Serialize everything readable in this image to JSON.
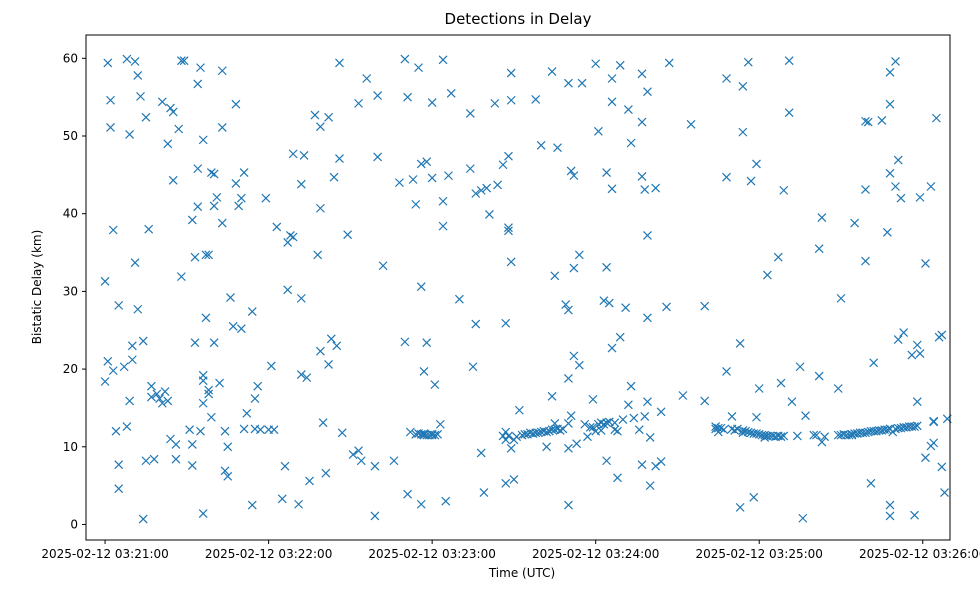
{
  "chart_data": {
    "type": "scatter",
    "title": "Detections in Delay",
    "xlabel": "Time (UTC)",
    "ylabel": "Bistatic Delay (km)",
    "marker": "x",
    "color": "#1f77b4",
    "grid": false,
    "xlim": [
      "2025-02-12 03:20:53",
      "2025-02-12 03:26:10"
    ],
    "ylim": [
      -2,
      63
    ],
    "xticks": [
      "2025-02-12 03:21:00",
      "2025-02-12 03:22:00",
      "2025-02-12 03:23:00",
      "2025-02-12 03:24:00",
      "2025-02-12 03:25:00",
      "2025-02-12 03:26:00"
    ],
    "yticks": [
      "0",
      "10",
      "20",
      "30",
      "40",
      "50",
      "60"
    ],
    "x_seconds_note": "x values are seconds after 03:21:00",
    "points": [
      [
        0,
        31.3
      ],
      [
        0,
        18.4
      ],
      [
        1,
        21
      ],
      [
        1,
        59.4
      ],
      [
        2,
        51.1
      ],
      [
        2,
        54.6
      ],
      [
        3,
        37.9
      ],
      [
        3,
        19.8
      ],
      [
        4,
        12
      ],
      [
        5,
        28.2
      ],
      [
        5,
        7.7
      ],
      [
        5,
        4.6
      ],
      [
        7,
        20.3
      ],
      [
        8,
        12.6
      ],
      [
        8,
        59.9
      ],
      [
        9,
        50.2
      ],
      [
        9,
        15.9
      ],
      [
        10,
        21.2
      ],
      [
        10,
        23
      ],
      [
        11,
        33.7
      ],
      [
        11,
        59.6
      ],
      [
        12,
        27.7
      ],
      [
        12,
        57.8
      ],
      [
        13,
        55.1
      ],
      [
        14,
        23.6
      ],
      [
        14,
        0.7
      ],
      [
        15,
        52.4
      ],
      [
        15,
        8.2
      ],
      [
        16,
        38
      ],
      [
        17,
        16.4
      ],
      [
        17,
        17.8
      ],
      [
        18,
        8.4
      ],
      [
        19,
        16.8
      ],
      [
        20,
        16.2
      ],
      [
        21,
        54.4
      ],
      [
        21,
        15.6
      ],
      [
        22,
        17.1
      ],
      [
        23,
        49
      ],
      [
        23,
        15.9
      ],
      [
        24,
        53.6
      ],
      [
        24,
        11
      ],
      [
        25,
        53.1
      ],
      [
        25,
        44.3
      ],
      [
        26,
        8.4
      ],
      [
        26,
        10.3
      ],
      [
        27,
        50.9
      ],
      [
        28,
        31.9
      ],
      [
        28,
        59.7
      ],
      [
        29,
        59.7
      ],
      [
        31,
        12.2
      ],
      [
        32,
        10.3
      ],
      [
        32,
        7.6
      ],
      [
        32,
        39.2
      ],
      [
        33,
        34.4
      ],
      [
        33,
        23.4
      ],
      [
        34,
        40.9
      ],
      [
        34,
        45.8
      ],
      [
        34,
        56.7
      ],
      [
        35,
        58.8
      ],
      [
        35,
        12
      ],
      [
        36,
        18.5
      ],
      [
        36,
        19.2
      ],
      [
        36,
        15.6
      ],
      [
        36,
        1.4
      ],
      [
        36,
        49.5
      ],
      [
        37,
        26.6
      ],
      [
        37,
        34.7
      ],
      [
        38,
        34.7
      ],
      [
        38,
        17.3
      ],
      [
        38,
        16.8
      ],
      [
        39,
        45.3
      ],
      [
        39,
        13.8
      ],
      [
        40,
        41
      ],
      [
        40,
        23.4
      ],
      [
        40,
        45.1
      ],
      [
        41,
        42.1
      ],
      [
        42,
        18.2
      ],
      [
        43,
        58.4
      ],
      [
        43,
        51.1
      ],
      [
        43,
        38.8
      ],
      [
        44,
        12
      ],
      [
        44,
        6.9
      ],
      [
        45,
        6.2
      ],
      [
        45,
        10
      ],
      [
        46,
        29.2
      ],
      [
        47,
        25.5
      ],
      [
        48,
        54.1
      ],
      [
        48,
        43.9
      ],
      [
        49,
        41
      ],
      [
        50,
        42
      ],
      [
        50,
        25.2
      ],
      [
        51,
        45.3
      ],
      [
        51,
        12.3
      ],
      [
        52,
        14.3
      ],
      [
        54,
        2.5
      ],
      [
        54,
        27.4
      ],
      [
        55,
        12.3
      ],
      [
        55,
        16.2
      ],
      [
        56,
        17.8
      ],
      [
        57,
        12.2
      ],
      [
        59,
        42
      ],
      [
        60,
        12.2
      ],
      [
        61,
        20.4
      ],
      [
        62,
        12.2
      ],
      [
        63,
        38.3
      ],
      [
        65,
        3.3
      ],
      [
        66,
        7.5
      ],
      [
        67,
        30.2
      ],
      [
        67,
        36.3
      ],
      [
        68,
        37.2
      ],
      [
        69,
        37
      ],
      [
        69,
        47.7
      ],
      [
        71,
        2.6
      ],
      [
        72,
        29.1
      ],
      [
        72,
        43.8
      ],
      [
        72,
        19.3
      ],
      [
        73,
        47.5
      ],
      [
        74,
        18.9
      ],
      [
        75,
        5.6
      ],
      [
        77,
        52.7
      ],
      [
        78,
        34.7
      ],
      [
        79,
        22.3
      ],
      [
        79,
        40.7
      ],
      [
        79,
        51.2
      ],
      [
        80,
        13.1
      ],
      [
        81,
        6.6
      ],
      [
        82,
        52.4
      ],
      [
        82,
        20.6
      ],
      [
        83,
        23.9
      ],
      [
        84,
        44.7
      ],
      [
        85,
        23
      ],
      [
        86,
        47.1
      ],
      [
        86,
        59.4
      ],
      [
        87,
        11.8
      ],
      [
        89,
        37.3
      ],
      [
        91,
        9
      ],
      [
        93,
        54.2
      ],
      [
        93,
        9.5
      ],
      [
        94,
        8.2
      ],
      [
        96,
        57.4
      ],
      [
        99,
        1.1
      ],
      [
        99,
        7.5
      ],
      [
        100,
        47.3
      ],
      [
        100,
        55.2
      ],
      [
        102,
        33.3
      ],
      [
        106,
        8.2
      ],
      [
        108,
        44
      ],
      [
        110,
        23.5
      ],
      [
        110,
        59.9
      ],
      [
        111,
        55
      ],
      [
        111,
        3.9
      ],
      [
        112,
        11.9
      ],
      [
        113,
        44.4
      ],
      [
        114,
        11.6
      ],
      [
        114,
        41.2
      ],
      [
        115,
        11.7
      ],
      [
        115,
        58.8
      ],
      [
        116,
        46.4
      ],
      [
        116,
        11.6
      ],
      [
        116,
        30.6
      ],
      [
        116,
        2.6
      ],
      [
        117,
        11.7
      ],
      [
        117,
        19.7
      ],
      [
        117,
        11.5
      ],
      [
        118,
        46.7
      ],
      [
        118,
        23.4
      ],
      [
        118,
        11.5
      ],
      [
        119,
        11.5
      ],
      [
        120,
        11.5
      ],
      [
        120,
        54.3
      ],
      [
        120,
        44.6
      ],
      [
        120,
        11.6
      ],
      [
        121,
        18
      ],
      [
        121,
        11.5
      ],
      [
        122,
        11.6
      ],
      [
        123,
        12.9
      ],
      [
        124,
        41.6
      ],
      [
        124,
        38.4
      ],
      [
        124,
        59.8
      ],
      [
        125,
        3
      ],
      [
        126,
        44.9
      ],
      [
        127,
        55.5
      ],
      [
        130,
        29
      ],
      [
        134,
        52.9
      ],
      [
        134,
        45.8
      ],
      [
        135,
        20.3
      ],
      [
        136,
        42.6
      ],
      [
        136,
        25.8
      ],
      [
        138,
        43
      ],
      [
        138,
        9.2
      ],
      [
        139,
        4.1
      ],
      [
        140,
        43.3
      ],
      [
        141,
        39.9
      ],
      [
        143,
        54.2
      ],
      [
        144,
        43.7
      ],
      [
        146,
        46.3
      ],
      [
        146,
        11.4
      ],
      [
        147,
        10.9
      ],
      [
        147,
        25.9
      ],
      [
        147,
        11.9
      ],
      [
        147,
        5.3
      ],
      [
        148,
        38.2
      ],
      [
        148,
        47.4
      ],
      [
        148,
        11.4
      ],
      [
        148,
        37.8
      ],
      [
        149,
        58.1
      ],
      [
        149,
        54.6
      ],
      [
        149,
        33.8
      ],
      [
        149,
        9.8
      ],
      [
        150,
        5.8
      ],
      [
        150,
        10.9
      ],
      [
        151,
        11.3
      ],
      [
        152,
        14.7
      ],
      [
        153,
        11.5
      ],
      [
        154,
        11.6
      ],
      [
        155,
        11.6
      ],
      [
        156,
        11.8
      ],
      [
        157,
        11.7
      ],
      [
        158,
        11.8
      ],
      [
        158,
        54.7
      ],
      [
        159,
        11.8
      ],
      [
        160,
        48.8
      ],
      [
        160,
        11.9
      ],
      [
        161,
        12
      ],
      [
        162,
        11.9
      ],
      [
        162,
        10
      ],
      [
        163,
        12
      ],
      [
        164,
        12.2
      ],
      [
        164,
        16.5
      ],
      [
        164,
        58.3
      ],
      [
        165,
        12.2
      ],
      [
        165,
        13
      ],
      [
        165,
        32
      ],
      [
        166,
        12.3
      ],
      [
        166,
        48.5
      ],
      [
        167,
        12.1
      ],
      [
        168,
        12.3
      ],
      [
        169,
        28.3
      ],
      [
        170,
        56.8
      ],
      [
        170,
        13
      ],
      [
        170,
        18.8
      ],
      [
        170,
        27.6
      ],
      [
        170,
        9.8
      ],
      [
        170,
        2.5
      ],
      [
        171,
        45.5
      ],
      [
        171,
        14
      ],
      [
        172,
        44.9
      ],
      [
        172,
        33
      ],
      [
        172,
        21.7
      ],
      [
        173,
        10.4
      ],
      [
        174,
        34.7
      ],
      [
        174,
        20.5
      ],
      [
        175,
        56.8
      ],
      [
        176,
        12.9
      ],
      [
        177,
        11.3
      ],
      [
        178,
        12.5
      ],
      [
        179,
        16.1
      ],
      [
        179,
        12.5
      ],
      [
        180,
        59.3
      ],
      [
        180,
        12
      ],
      [
        181,
        50.6
      ],
      [
        181,
        12.9
      ],
      [
        182,
        13.1
      ],
      [
        182,
        12.1
      ],
      [
        183,
        12.9
      ],
      [
        183,
        28.8
      ],
      [
        184,
        13.1
      ],
      [
        184,
        45.3
      ],
      [
        184,
        33.1
      ],
      [
        184,
        8.2
      ],
      [
        185,
        13.2
      ],
      [
        185,
        28.5
      ],
      [
        186,
        57.4
      ],
      [
        186,
        54.4
      ],
      [
        186,
        43.2
      ],
      [
        186,
        22.7
      ],
      [
        187,
        13.1
      ],
      [
        187,
        12.2
      ],
      [
        188,
        6
      ],
      [
        188,
        12
      ],
      [
        189,
        24.1
      ],
      [
        189,
        59.1
      ],
      [
        190,
        13.5
      ],
      [
        191,
        27.9
      ],
      [
        192,
        15.4
      ],
      [
        192,
        53.4
      ],
      [
        193,
        49.1
      ],
      [
        193,
        17.8
      ],
      [
        194,
        13.7
      ],
      [
        196,
        12.2
      ],
      [
        197,
        58
      ],
      [
        197,
        51.8
      ],
      [
        197,
        44.8
      ],
      [
        197,
        7.7
      ],
      [
        198,
        13.9
      ],
      [
        198,
        43.1
      ],
      [
        199,
        26.6
      ],
      [
        199,
        37.2
      ],
      [
        199,
        15.8
      ],
      [
        199,
        55.7
      ],
      [
        200,
        11.2
      ],
      [
        200,
        5
      ],
      [
        202,
        43.3
      ],
      [
        202,
        7.5
      ],
      [
        204,
        14.5
      ],
      [
        204,
        8.1
      ],
      [
        206,
        28
      ],
      [
        207,
        59.4
      ],
      [
        212,
        16.6
      ],
      [
        215,
        51.5
      ],
      [
        220,
        28.1
      ],
      [
        220,
        15.9
      ],
      [
        224,
        12.6
      ],
      [
        224,
        12.3
      ],
      [
        225,
        12.4
      ],
      [
        225,
        11.9
      ],
      [
        226,
        12.4
      ],
      [
        227,
        12.2
      ],
      [
        228,
        19.7
      ],
      [
        228,
        44.7
      ],
      [
        228,
        57.4
      ],
      [
        230,
        13.9
      ],
      [
        230,
        12.3
      ],
      [
        231,
        12.1
      ],
      [
        232,
        12.3
      ],
      [
        233,
        23.3
      ],
      [
        233,
        2.2
      ],
      [
        234,
        12.1
      ],
      [
        234,
        50.5
      ],
      [
        234,
        56.4
      ],
      [
        234,
        11.8
      ],
      [
        235,
        12
      ],
      [
        236,
        59.5
      ],
      [
        236,
        11.9
      ],
      [
        237,
        44.2
      ],
      [
        237,
        11.8
      ],
      [
        238,
        3.5
      ],
      [
        238,
        11.7
      ],
      [
        239,
        13.8
      ],
      [
        239,
        46.4
      ],
      [
        239,
        11.7
      ],
      [
        240,
        17.5
      ],
      [
        240,
        11.6
      ],
      [
        241,
        11.5
      ],
      [
        242,
        11.2
      ],
      [
        242,
        11.5
      ],
      [
        243,
        32.1
      ],
      [
        243,
        11.4
      ],
      [
        244,
        11.4
      ],
      [
        245,
        11.4
      ],
      [
        246,
        11.3
      ],
      [
        247,
        11.4
      ],
      [
        247,
        34.4
      ],
      [
        248,
        11.3
      ],
      [
        248,
        18.2
      ],
      [
        249,
        11.4
      ],
      [
        249,
        43
      ],
      [
        251,
        59.7
      ],
      [
        251,
        53
      ],
      [
        252,
        15.8
      ],
      [
        254,
        11.4
      ],
      [
        255,
        20.3
      ],
      [
        256,
        0.8
      ],
      [
        257,
        14
      ],
      [
        260,
        11.5
      ],
      [
        261,
        11.5
      ],
      [
        262,
        35.5
      ],
      [
        262,
        19.1
      ],
      [
        263,
        39.5
      ],
      [
        263,
        10.6
      ],
      [
        264,
        11.3
      ],
      [
        269,
        11.5
      ],
      [
        269,
        17.5
      ],
      [
        270,
        29.1
      ],
      [
        270,
        11.5
      ],
      [
        271,
        11.6
      ],
      [
        272,
        11.5
      ],
      [
        273,
        11.5
      ],
      [
        274,
        11.6
      ],
      [
        274,
        11.5
      ],
      [
        275,
        11.7
      ],
      [
        275,
        38.8
      ],
      [
        276,
        11.7
      ],
      [
        277,
        11.8
      ],
      [
        278,
        11.8
      ],
      [
        279,
        51.9
      ],
      [
        279,
        11.8
      ],
      [
        279,
        43.1
      ],
      [
        279,
        33.9
      ],
      [
        280,
        51.8
      ],
      [
        280,
        11.9
      ],
      [
        281,
        12
      ],
      [
        281,
        5.3
      ],
      [
        282,
        20.8
      ],
      [
        282,
        12
      ],
      [
        283,
        12
      ],
      [
        284,
        12.1
      ],
      [
        285,
        52
      ],
      [
        285,
        12.1
      ],
      [
        286,
        12.2
      ],
      [
        287,
        37.6
      ],
      [
        287,
        12.2
      ],
      [
        288,
        58.2
      ],
      [
        288,
        54.1
      ],
      [
        288,
        45.2
      ],
      [
        288,
        12.3
      ],
      [
        288,
        12.3
      ],
      [
        288,
        2.5
      ],
      [
        288,
        1.1
      ],
      [
        289,
        11.9
      ],
      [
        290,
        12.3
      ],
      [
        290,
        59.6
      ],
      [
        290,
        43.5
      ],
      [
        291,
        12.4
      ],
      [
        291,
        46.9
      ],
      [
        291,
        23.8
      ],
      [
        292,
        12.4
      ],
      [
        292,
        42
      ],
      [
        293,
        24.7
      ],
      [
        293,
        12.5
      ],
      [
        294,
        12.5
      ],
      [
        295,
        12.6
      ],
      [
        296,
        12.6
      ],
      [
        296,
        21.8
      ],
      [
        297,
        12.6
      ],
      [
        297,
        1.2
      ],
      [
        298,
        23.1
      ],
      [
        298,
        15.8
      ],
      [
        298,
        12.7
      ],
      [
        299,
        42.1
      ],
      [
        299,
        22
      ],
      [
        301,
        33.6
      ],
      [
        301,
        8.6
      ],
      [
        303,
        10.1
      ],
      [
        303,
        43.5
      ],
      [
        304,
        13.2
      ],
      [
        304,
        13.3
      ],
      [
        304,
        10.5
      ],
      [
        305,
        52.3
      ],
      [
        306,
        24.1
      ],
      [
        307,
        7.4
      ],
      [
        307,
        24.4
      ],
      [
        308,
        4.1
      ],
      [
        309,
        13.6
      ]
    ]
  }
}
